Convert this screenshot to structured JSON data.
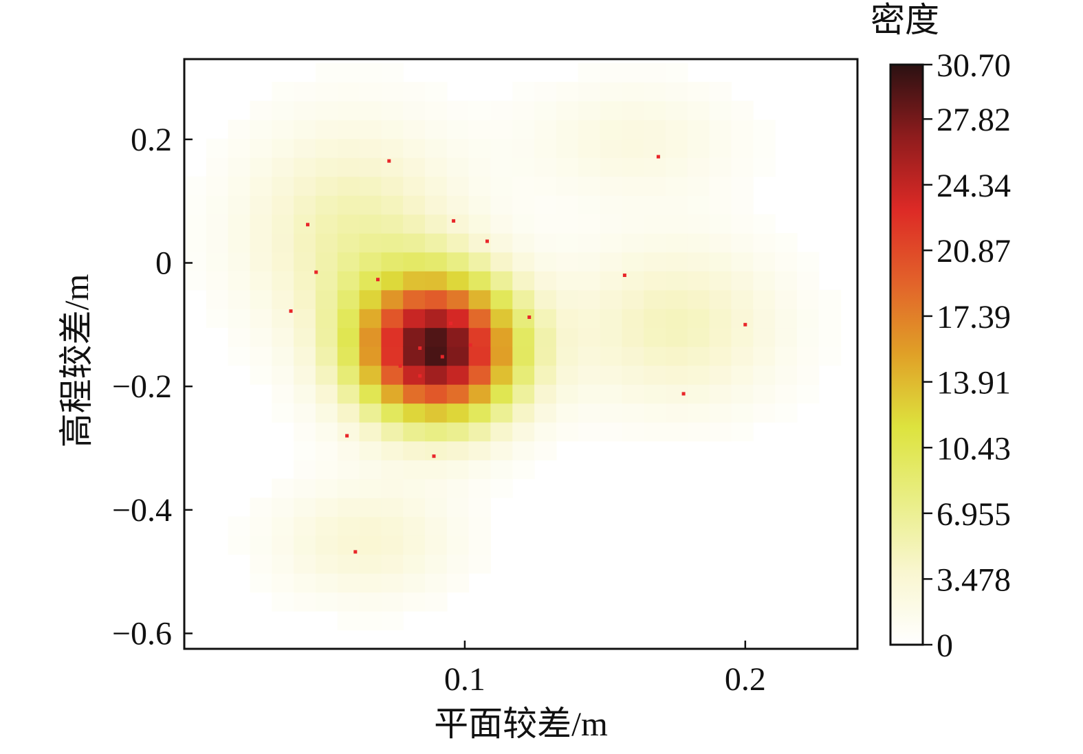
{
  "chart_data": {
    "type": "heatmap",
    "xlabel": "平面较差/m",
    "ylabel": "高程较差/m",
    "colorbar_label": "密度",
    "xlim": [
      -0.0,
      0.24
    ],
    "ylim": [
      -0.625,
      0.33
    ],
    "x_ticks": [
      {
        "value": 0.1,
        "label": "0.1"
      },
      {
        "value": 0.2,
        "label": "0.2"
      }
    ],
    "y_ticks": [
      {
        "value": 0.2,
        "label": "0.2"
      },
      {
        "value": 0.0,
        "label": "0"
      },
      {
        "value": -0.2,
        "label": "−0.2"
      },
      {
        "value": -0.4,
        "label": "−0.4"
      },
      {
        "value": -0.6,
        "label": "−0.6"
      }
    ],
    "colorbar": {
      "min": 0,
      "max": 30.7,
      "ticks": [
        {
          "value": 30.7,
          "label": "30.70"
        },
        {
          "value": 27.82,
          "label": "27.82"
        },
        {
          "value": 24.34,
          "label": "24.34"
        },
        {
          "value": 20.87,
          "label": "20.87"
        },
        {
          "value": 17.39,
          "label": "17.39"
        },
        {
          "value": 13.91,
          "label": "13.91"
        },
        {
          "value": 10.43,
          "label": "10.43"
        },
        {
          "value": 6.955,
          "label": "6.955"
        },
        {
          "value": 3.478,
          "label": "3.478"
        },
        {
          "value": 0,
          "label": "0"
        }
      ],
      "colors": [
        "#ffffff",
        "#f9f6d0",
        "#e9ee85",
        "#dde33e",
        "#e0a127",
        "#e2622a",
        "#dd2a26",
        "#8f1c1d",
        "#2b1112"
      ]
    },
    "density_grid": {
      "cell_width": 0.0078,
      "cell_height": 0.0306,
      "components": [
        {
          "x": 0.09,
          "y": -0.14,
          "sx": 0.03,
          "sy": 0.12,
          "peak": 29.0
        },
        {
          "x": 0.06,
          "y": 0.05,
          "sx": 0.04,
          "sy": 0.18,
          "peak": 5.5
        },
        {
          "x": 0.065,
          "y": -0.45,
          "sx": 0.035,
          "sy": 0.1,
          "peak": 3.5
        },
        {
          "x": 0.175,
          "y": -0.1,
          "sx": 0.04,
          "sy": 0.14,
          "peak": 4.8
        },
        {
          "x": 0.16,
          "y": 0.2,
          "sx": 0.04,
          "sy": 0.1,
          "peak": 2.5
        }
      ],
      "threshold": 0.5
    },
    "samples": [
      {
        "x": 0.073,
        "y": 0.165
      },
      {
        "x": 0.169,
        "y": 0.172
      },
      {
        "x": 0.044,
        "y": 0.062
      },
      {
        "x": 0.096,
        "y": 0.068
      },
      {
        "x": 0.108,
        "y": 0.035
      },
      {
        "x": 0.047,
        "y": -0.015
      },
      {
        "x": 0.069,
        "y": -0.027
      },
      {
        "x": 0.038,
        "y": -0.078
      },
      {
        "x": 0.123,
        "y": -0.088
      },
      {
        "x": 0.157,
        "y": -0.02
      },
      {
        "x": 0.095,
        "y": -0.098
      },
      {
        "x": 0.084,
        "y": -0.138
      },
      {
        "x": 0.102,
        "y": -0.133
      },
      {
        "x": 0.092,
        "y": -0.152
      },
      {
        "x": 0.077,
        "y": -0.167
      },
      {
        "x": 0.084,
        "y": -0.183
      },
      {
        "x": 0.2,
        "y": -0.1
      },
      {
        "x": 0.178,
        "y": -0.212
      },
      {
        "x": 0.058,
        "y": -0.28
      },
      {
        "x": 0.089,
        "y": -0.313
      },
      {
        "x": 0.061,
        "y": -0.468
      }
    ],
    "sample_color": "#e8262a"
  }
}
